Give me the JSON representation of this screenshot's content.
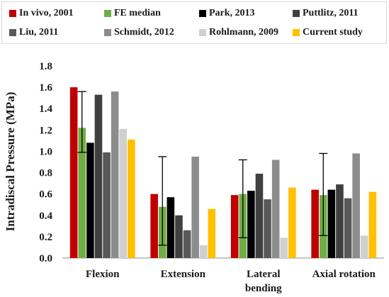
{
  "chart_data": {
    "type": "bar",
    "title": "",
    "xlabel": "",
    "ylabel": "Intradiscal Pressure (MPa)",
    "ylim": [
      0,
      1.8
    ],
    "yticks": [
      "0.0",
      "0.2",
      "0.4",
      "0.6",
      "0.8",
      "1.0",
      "1.2",
      "1.4",
      "1.6",
      "1.8"
    ],
    "grid": false,
    "legend_position": "top",
    "categories": [
      {
        "line1": "Flexion",
        "line2": ""
      },
      {
        "line1": "Extension",
        "line2": ""
      },
      {
        "line1": "Lateral",
        "line2": "bending"
      },
      {
        "line1": "Axial rotation",
        "line2": ""
      }
    ],
    "series": [
      {
        "name": "In vivo, 2001",
        "color": "#c00000",
        "values": [
          1.6,
          0.6,
          0.59,
          0.64
        ]
      },
      {
        "name": "FE median",
        "color": "#70ad47",
        "values": [
          1.22,
          0.48,
          0.6,
          0.59
        ],
        "error_low": [
          0.99,
          0.12,
          0.19,
          0.21
        ],
        "error_high": [
          1.56,
          0.95,
          0.92,
          0.98
        ]
      },
      {
        "name": "Park, 2013",
        "color": "#000000",
        "values": [
          1.08,
          0.57,
          0.63,
          0.64
        ]
      },
      {
        "name": "Puttlitz, 2011",
        "color": "#404040",
        "values": [
          1.53,
          0.4,
          0.79,
          0.69
        ]
      },
      {
        "name": "Liu, 2011",
        "color": "#595959",
        "values": [
          0.99,
          0.26,
          0.55,
          0.56
        ]
      },
      {
        "name": "Schmidt, 2012",
        "color": "#8c8c8c",
        "values": [
          1.56,
          0.95,
          0.92,
          0.98
        ]
      },
      {
        "name": "Rohlmann, 2009",
        "color": "#d0d0d0",
        "values": [
          1.21,
          0.12,
          0.19,
          0.21
        ]
      },
      {
        "name": "Current study",
        "color": "#ffc000",
        "values": [
          1.11,
          0.46,
          0.66,
          0.62
        ]
      }
    ]
  }
}
